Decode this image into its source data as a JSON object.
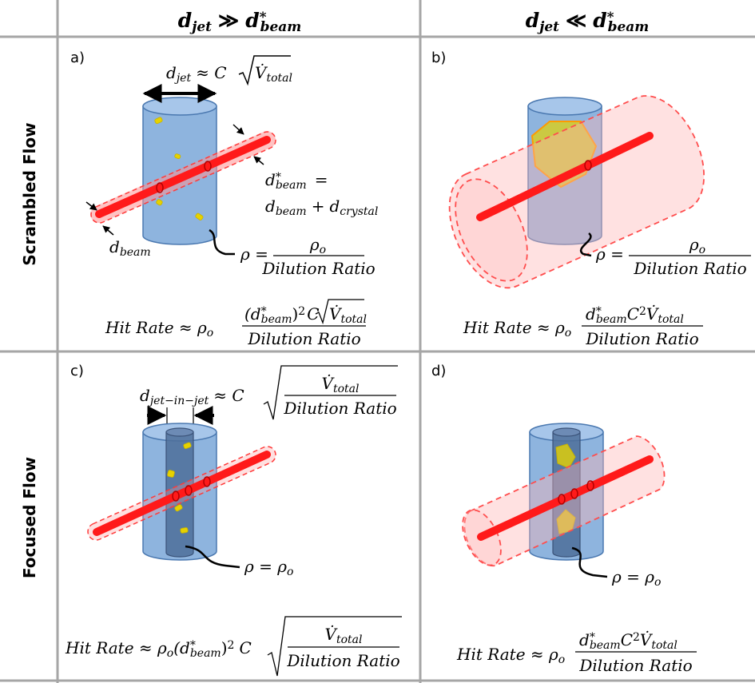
{
  "columns": [
    {
      "main": "d",
      "sub": "jet",
      "rel": "≫",
      "main2": "d",
      "sup2": "*",
      "sub2": "beam"
    },
    {
      "main": "d",
      "sub": "jet",
      "rel": "≪",
      "main2": "d",
      "sup2": "*",
      "sub2": "beam"
    }
  ],
  "rows": [
    "Scrambled Flow",
    "Focused Flow"
  ],
  "panels": {
    "a": {
      "letter": "a)",
      "djet_eq": {
        "d": "d",
        "sub": "jet",
        "rel": "≈ C",
        "V": "V̇",
        "Vsub": "total"
      },
      "dbeam_star": {
        "d": "d",
        "sup": "*",
        "sub": "beam",
        "eq": "="
      },
      "dbeam_sum": {
        "d1": "d",
        "s1": "beam",
        "plus": "+",
        "d2": "d",
        "s2": "crystal"
      },
      "dbeam_label": {
        "d": "d",
        "sub": "beam"
      },
      "rho": {
        "lhs": "ρ =",
        "num": "ρ",
        "numsub": "o",
        "den": "Dilution Ratio"
      },
      "hit": {
        "lhs": "Hit Rate ≈ ρ",
        "lhssub": "o",
        "num_open": "(d",
        "num_sup": "*",
        "num_sub": "beam",
        "num_close": ")",
        "num_pow": "2",
        "num_c": "C",
        "V": "V̇",
        "Vsub": "total",
        "den": "Dilution Ratio"
      }
    },
    "b": {
      "letter": "b)",
      "rho": {
        "lhs": "ρ =",
        "num": "ρ",
        "numsub": "o",
        "den": "Dilution Ratio"
      },
      "hit": {
        "lhs": "Hit Rate ≈ ρ",
        "lhssub": "o",
        "num_d": "d",
        "num_sup": "*",
        "num_sub": "beam",
        "num_c": "C",
        "num_pow": "2",
        "V": "V̇",
        "Vsub": "total",
        "den": "Dilution Ratio"
      }
    },
    "c": {
      "letter": "c)",
      "djet_eq": {
        "d": "d",
        "sub": "jet−in−jet",
        "rel": "≈ C",
        "num": "V̇",
        "numsub": "total",
        "den": "Dilution Ratio"
      },
      "rho": {
        "text": "ρ = ρ",
        "sub": "o"
      },
      "hit": {
        "lhs": "Hit Rate ≈ ρ",
        "lhssub": "o",
        "mid_open": "(d",
        "mid_sup": "*",
        "mid_sub": "beam",
        "mid_close": ")",
        "mid_pow": "2",
        "mid_c": "C",
        "num": "V̇",
        "numsub": "total",
        "den": "Dilution Ratio"
      }
    },
    "d": {
      "letter": "d)",
      "rho": {
        "text": "ρ = ρ",
        "sub": "o"
      },
      "hit": {
        "lhs": "Hit Rate ≈ ρ",
        "lhssub": "o",
        "num_d": "d",
        "num_sup": "*",
        "num_sub": "beam",
        "num_c": "C",
        "num_pow": "2",
        "V": "V̇",
        "Vsub": "total",
        "den": "Dilution Ratio"
      }
    }
  },
  "colors": {
    "jet_fill": "#7aa7d8",
    "jet_stroke": "#4a78b0",
    "inner_jet": "#4e6e9a",
    "beam": "#ff1a1a",
    "beam_envelope": "#ff6b6b",
    "crystal": "#e6d200",
    "grid": "#a6a6a6"
  }
}
